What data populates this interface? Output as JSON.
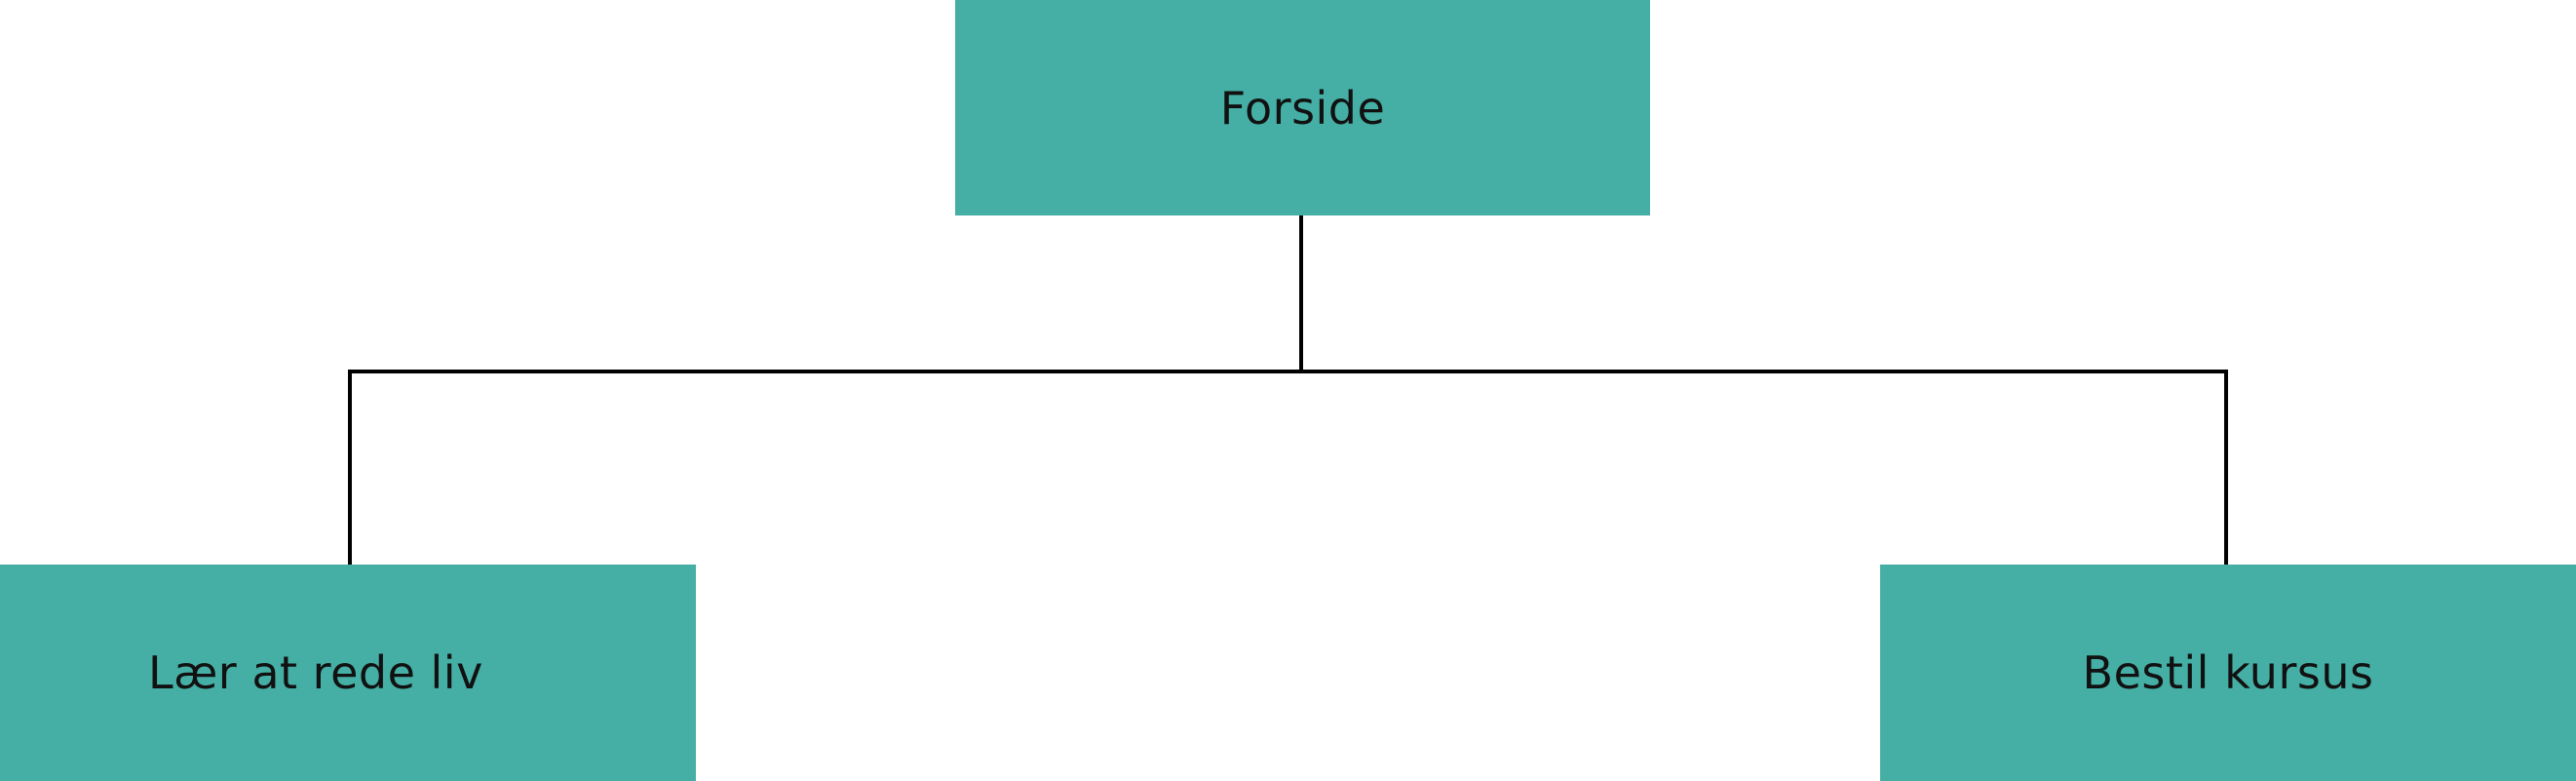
{
  "diagram": {
    "root": {
      "label": "Forside"
    },
    "children": [
      {
        "label": "Lær at rede liv"
      },
      {
        "label": "Bestil kursus"
      }
    ],
    "colors": {
      "node_fill": "#45AFA5",
      "connector": "#000000",
      "text": "#111111"
    }
  }
}
